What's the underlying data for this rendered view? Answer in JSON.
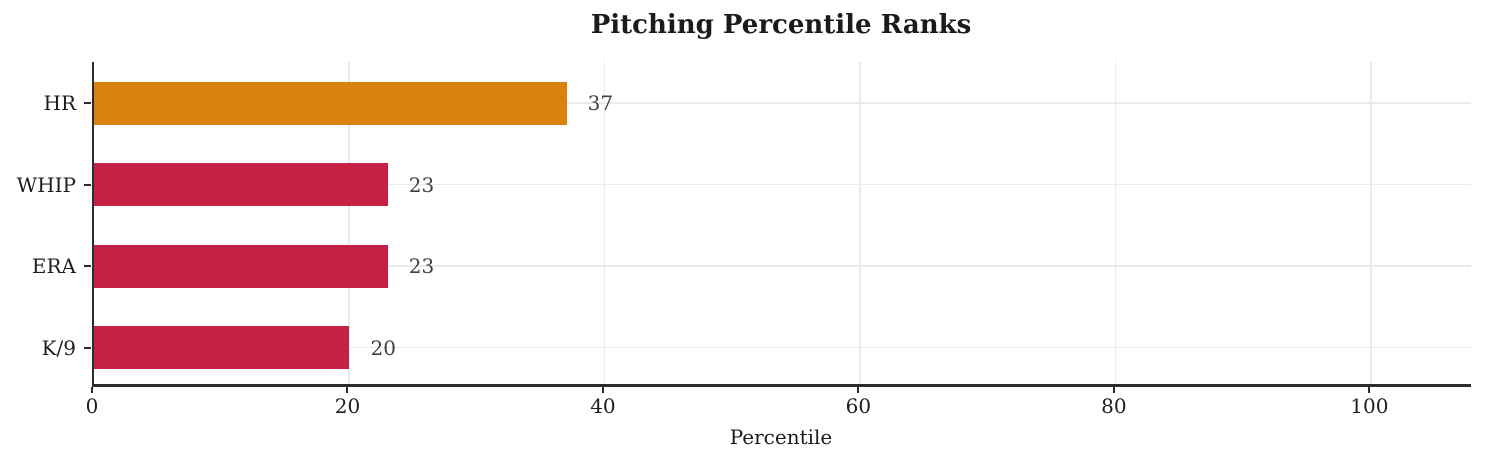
{
  "chart_data": {
    "type": "bar",
    "orientation": "horizontal",
    "title": "Pitching Percentile Ranks",
    "xlabel": "Percentile",
    "ylabel": "",
    "categories": [
      "HR",
      "WHIP",
      "ERA",
      "K/9"
    ],
    "values": [
      37,
      23,
      23,
      20
    ],
    "value_labels": [
      "37",
      "23",
      "23",
      "20"
    ],
    "xticks": [
      0,
      20,
      40,
      60,
      80,
      100
    ],
    "xlim": [
      0,
      107.8
    ],
    "grid": "both",
    "legend_position": "none",
    "colors": {
      "bar_fill_by_row": [
        "#d9820e",
        "#c52144",
        "#c52144",
        "#c52144"
      ],
      "bar_highlight": "#d9820e",
      "bar_default": "#c52144",
      "axis_spine": "#2b2b2b",
      "gridline": "#e9ebf1",
      "title_text": "#1b1b1b",
      "tick_text": "#1e1e1e",
      "value_text": "#3f3f3f"
    }
  }
}
